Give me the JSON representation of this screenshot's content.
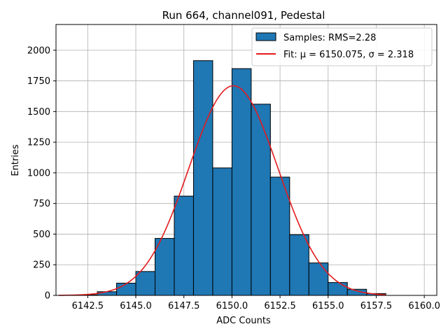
{
  "chart_data": {
    "type": "bar",
    "title": "Run 664, channel091, Pedestal",
    "xlabel": "ADC Counts",
    "ylabel": "Entries",
    "xlim": [
      6140.85,
      6160.65
    ],
    "ylim": [
      0,
      2210
    ],
    "grid": true,
    "legend_position": "top-right",
    "x_ticks": [
      6142.5,
      6145.0,
      6147.5,
      6150.0,
      6152.5,
      6155.0,
      6157.5,
      6160.0
    ],
    "x_tick_labels": [
      "6142.5",
      "6145.0",
      "6147.5",
      "6150.0",
      "6152.5",
      "6155.0",
      "6157.5",
      "6160.0"
    ],
    "y_ticks": [
      0,
      250,
      500,
      750,
      1000,
      1250,
      1500,
      1750,
      2000
    ],
    "y_tick_labels": [
      "0",
      "250",
      "500",
      "750",
      "1000",
      "1250",
      "1500",
      "1750",
      "2000"
    ],
    "histogram": {
      "name": "Samples: RMS=2.28",
      "color": "#1f77b4",
      "edge_color": "#000000",
      "bins": [
        {
          "left": 6142.0,
          "right": 6143.0,
          "count": 5
        },
        {
          "left": 6143.0,
          "right": 6144.0,
          "count": 30
        },
        {
          "left": 6144.0,
          "right": 6145.0,
          "count": 100
        },
        {
          "left": 6145.0,
          "right": 6146.0,
          "count": 195
        },
        {
          "left": 6146.0,
          "right": 6147.0,
          "count": 465
        },
        {
          "left": 6147.0,
          "right": 6148.0,
          "count": 810
        },
        {
          "left": 6148.0,
          "right": 6149.0,
          "count": 1915
        },
        {
          "left": 6149.0,
          "right": 6150.0,
          "count": 1040
        },
        {
          "left": 6150.0,
          "right": 6151.0,
          "count": 1850
        },
        {
          "left": 6151.0,
          "right": 6152.0,
          "count": 1560
        },
        {
          "left": 6152.0,
          "right": 6153.0,
          "count": 965
        },
        {
          "left": 6153.0,
          "right": 6154.0,
          "count": 495
        },
        {
          "left": 6154.0,
          "right": 6155.0,
          "count": 265
        },
        {
          "left": 6155.0,
          "right": 6156.0,
          "count": 105
        },
        {
          "left": 6156.0,
          "right": 6157.0,
          "count": 50
        },
        {
          "left": 6157.0,
          "right": 6158.0,
          "count": 15
        }
      ]
    },
    "fit": {
      "name": "Fit: μ = 6150.075, σ = 2.318",
      "color": "#e41a1c",
      "mu": 6150.075,
      "sigma": 2.318,
      "amplitude": 1710,
      "x_range": [
        6141.0,
        6158.0
      ]
    }
  }
}
